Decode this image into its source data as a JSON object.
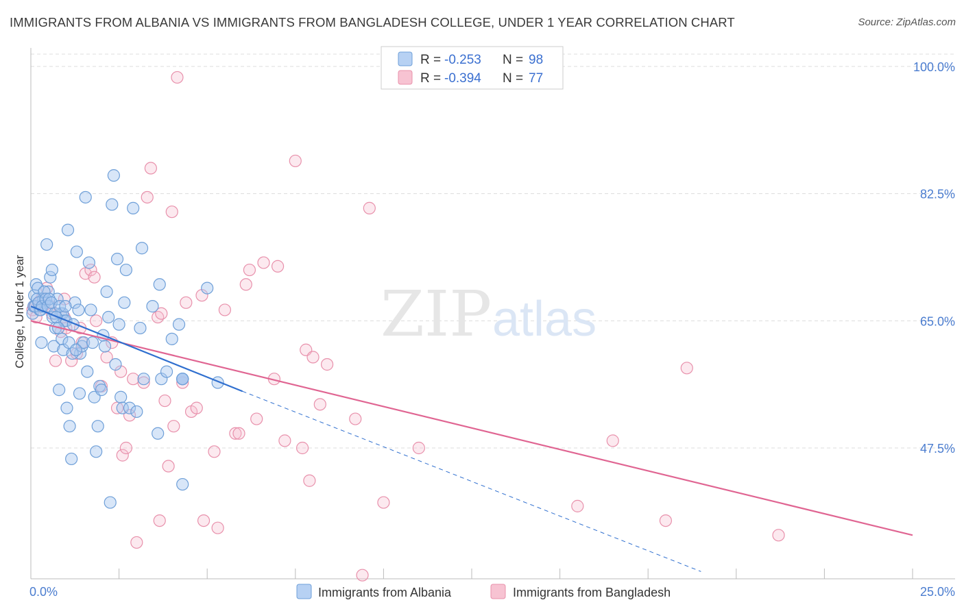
{
  "header": {
    "title": "IMMIGRANTS FROM ALBANIA VS IMMIGRANTS FROM BANGLADESH COLLEGE, UNDER 1 YEAR CORRELATION CHART",
    "source": "Source: ZipAtlas.com"
  },
  "watermark": {
    "zip": "ZIP",
    "atlas": "atlas"
  },
  "legend_top": {
    "rows": [
      {
        "r_label": "R = ",
        "r_value": "-0.253",
        "n_label": "N = ",
        "n_value": "98"
      },
      {
        "r_label": "R = ",
        "r_value": "-0.394",
        "n_label": "N = ",
        "n_value": "77"
      }
    ]
  },
  "colors": {
    "albania_fill": "#a8c8f0",
    "albania_stroke": "#6e9fd8",
    "albania_line": "#2f6fcf",
    "bangladesh_fill": "#f7c0d0",
    "bangladesh_stroke": "#e890ab",
    "bangladesh_line": "#e06592"
  },
  "chart_data": {
    "type": "scatter",
    "title": "IMMIGRANTS FROM ALBANIA VS IMMIGRANTS FROM BANGLADESH COLLEGE, UNDER 1 YEAR CORRELATION CHART",
    "xlabel": "",
    "ylabel": "College, Under 1 year",
    "xlim": [
      0,
      25
    ],
    "ylim": [
      31,
      102
    ],
    "x_tick_labels": [
      "0.0%",
      "25.0%"
    ],
    "y_tick_labels": [
      "100.0%",
      "82.5%",
      "65.0%",
      "47.5%"
    ],
    "y_ticks": [
      100,
      82.5,
      65,
      47.5
    ],
    "grid": true,
    "legend_placement": "bottom",
    "series": [
      {
        "name": "Immigrants from Albania",
        "r": -0.253,
        "n": 98,
        "trend": {
          "x0": 0,
          "y0": 67.0,
          "x1": 6.0,
          "y1": 55.3,
          "dashed_to_x": 19.0,
          "dashed_to_y": 30.5
        },
        "points": [
          [
            0.05,
            66.0
          ],
          [
            0.1,
            68.5
          ],
          [
            0.15,
            70.0
          ],
          [
            0.2,
            69.5
          ],
          [
            0.25,
            66.5
          ],
          [
            0.3,
            62.0
          ],
          [
            0.35,
            68.0
          ],
          [
            0.4,
            67.5
          ],
          [
            0.45,
            75.5
          ],
          [
            0.5,
            69.0
          ],
          [
            0.55,
            71.0
          ],
          [
            0.6,
            72.0
          ],
          [
            0.62,
            65.5
          ],
          [
            0.65,
            61.5
          ],
          [
            0.7,
            64.0
          ],
          [
            0.75,
            68.0
          ],
          [
            0.8,
            55.5
          ],
          [
            0.85,
            66.0
          ],
          [
            0.9,
            66.0
          ],
          [
            0.95,
            65.0
          ],
          [
            1.0,
            65.0
          ],
          [
            1.02,
            53.0
          ],
          [
            1.05,
            77.5
          ],
          [
            1.1,
            50.5
          ],
          [
            1.15,
            46.0
          ],
          [
            1.2,
            64.5
          ],
          [
            1.25,
            67.5
          ],
          [
            1.3,
            74.5
          ],
          [
            1.35,
            66.5
          ],
          [
            1.4,
            60.5
          ],
          [
            1.45,
            61.5
          ],
          [
            1.5,
            62.0
          ],
          [
            1.55,
            82.0
          ],
          [
            1.6,
            58.0
          ],
          [
            1.65,
            73.0
          ],
          [
            1.7,
            66.5
          ],
          [
            1.75,
            62.0
          ],
          [
            1.8,
            54.5
          ],
          [
            1.85,
            47.0
          ],
          [
            1.9,
            50.5
          ],
          [
            1.95,
            56.0
          ],
          [
            2.0,
            55.5
          ],
          [
            2.05,
            63.0
          ],
          [
            2.1,
            61.5
          ],
          [
            2.15,
            69.0
          ],
          [
            2.2,
            65.5
          ],
          [
            2.25,
            40.0
          ],
          [
            2.3,
            81.0
          ],
          [
            2.35,
            85.0
          ],
          [
            2.4,
            59.0
          ],
          [
            2.45,
            73.5
          ],
          [
            2.5,
            64.5
          ],
          [
            2.55,
            54.5
          ],
          [
            2.6,
            53.0
          ],
          [
            2.65,
            67.5
          ],
          [
            2.7,
            72.0
          ],
          [
            2.8,
            53.0
          ],
          [
            2.9,
            80.5
          ],
          [
            3.0,
            52.5
          ],
          [
            3.1,
            64.0
          ],
          [
            3.15,
            75.0
          ],
          [
            3.2,
            57.0
          ],
          [
            3.45,
            67.0
          ],
          [
            3.6,
            49.5
          ],
          [
            3.65,
            70.0
          ],
          [
            3.7,
            57.0
          ],
          [
            3.85,
            58.0
          ],
          [
            4.0,
            62.5
          ],
          [
            4.2,
            64.5
          ],
          [
            4.3,
            42.5
          ],
          [
            4.3,
            57.0
          ],
          [
            4.3,
            57.0
          ],
          [
            4.3,
            57.0
          ],
          [
            4.3,
            57.0
          ],
          [
            5.0,
            69.5
          ],
          [
            5.3,
            56.5
          ],
          [
            0.08,
            67.0
          ],
          [
            0.12,
            67.0
          ],
          [
            0.18,
            68.0
          ],
          [
            0.22,
            67.5
          ],
          [
            0.28,
            66.5
          ],
          [
            0.32,
            67.0
          ],
          [
            0.38,
            69.0
          ],
          [
            0.42,
            68.0
          ],
          [
            0.48,
            67.0
          ],
          [
            0.52,
            68.0
          ],
          [
            0.58,
            67.5
          ],
          [
            0.68,
            66.0
          ],
          [
            0.72,
            65.5
          ],
          [
            0.78,
            64.0
          ],
          [
            0.82,
            67.0
          ],
          [
            0.88,
            62.5
          ],
          [
            0.92,
            61.0
          ],
          [
            0.98,
            67.0
          ],
          [
            1.08,
            62.0
          ],
          [
            1.18,
            60.5
          ],
          [
            1.28,
            61.0
          ],
          [
            1.38,
            55.0
          ]
        ]
      },
      {
        "name": "Immigrants from Bangladesh",
        "r": -0.394,
        "n": 77,
        "trend": {
          "x0": 0,
          "y0": 65.0,
          "x1": 25.0,
          "y1": 35.5
        },
        "points": [
          [
            0.05,
            66.5
          ],
          [
            0.15,
            65.5
          ],
          [
            0.3,
            68.0
          ],
          [
            0.45,
            69.5
          ],
          [
            0.55,
            67.0
          ],
          [
            0.7,
            59.5
          ],
          [
            0.85,
            63.5
          ],
          [
            0.95,
            68.0
          ],
          [
            1.0,
            64.0
          ],
          [
            1.15,
            59.5
          ],
          [
            1.3,
            60.5
          ],
          [
            1.4,
            64.0
          ],
          [
            1.45,
            62.0
          ],
          [
            1.55,
            71.5
          ],
          [
            1.7,
            72.0
          ],
          [
            1.8,
            71.0
          ],
          [
            1.85,
            65.0
          ],
          [
            2.0,
            56.0
          ],
          [
            2.15,
            60.0
          ],
          [
            2.3,
            62.0
          ],
          [
            2.45,
            53.0
          ],
          [
            2.55,
            58.0
          ],
          [
            2.6,
            46.5
          ],
          [
            2.7,
            47.5
          ],
          [
            2.8,
            52.0
          ],
          [
            2.9,
            57.0
          ],
          [
            3.0,
            34.5
          ],
          [
            3.2,
            56.5
          ],
          [
            3.3,
            82.0
          ],
          [
            3.4,
            86.0
          ],
          [
            3.6,
            65.5
          ],
          [
            3.65,
            37.5
          ],
          [
            3.7,
            66.0
          ],
          [
            3.8,
            54.0
          ],
          [
            3.9,
            45.0
          ],
          [
            4.0,
            80.0
          ],
          [
            4.05,
            50.5
          ],
          [
            4.15,
            98.5
          ],
          [
            4.3,
            56.5
          ],
          [
            4.4,
            67.5
          ],
          [
            4.55,
            52.5
          ],
          [
            4.7,
            53.0
          ],
          [
            4.85,
            68.5
          ],
          [
            4.9,
            37.5
          ],
          [
            5.2,
            47.0
          ],
          [
            5.3,
            36.5
          ],
          [
            5.5,
            66.5
          ],
          [
            5.8,
            49.5
          ],
          [
            5.9,
            49.5
          ],
          [
            6.1,
            70.0
          ],
          [
            6.2,
            72.0
          ],
          [
            6.4,
            51.5
          ],
          [
            6.6,
            73.0
          ],
          [
            6.9,
            57.0
          ],
          [
            7.0,
            72.5
          ],
          [
            7.2,
            48.5
          ],
          [
            7.5,
            87.0
          ],
          [
            7.7,
            47.5
          ],
          [
            7.8,
            61.0
          ],
          [
            7.9,
            43.0
          ],
          [
            8.0,
            60.0
          ],
          [
            8.2,
            53.5
          ],
          [
            8.4,
            59.0
          ],
          [
            9.2,
            51.5
          ],
          [
            9.4,
            30.0
          ],
          [
            9.6,
            80.5
          ],
          [
            10.0,
            40.0
          ],
          [
            11.0,
            47.5
          ],
          [
            15.5,
            39.5
          ],
          [
            16.5,
            48.5
          ],
          [
            18.0,
            37.5
          ],
          [
            18.6,
            58.5
          ],
          [
            21.2,
            35.5
          ],
          [
            0.1,
            67.0
          ],
          [
            0.25,
            67.5
          ],
          [
            0.6,
            66.0
          ],
          [
            0.95,
            65.5
          ]
        ]
      }
    ]
  },
  "bottom_legend": {
    "items": [
      {
        "label": "Immigrants from Albania"
      },
      {
        "label": "Immigrants from Bangladesh"
      }
    ]
  }
}
